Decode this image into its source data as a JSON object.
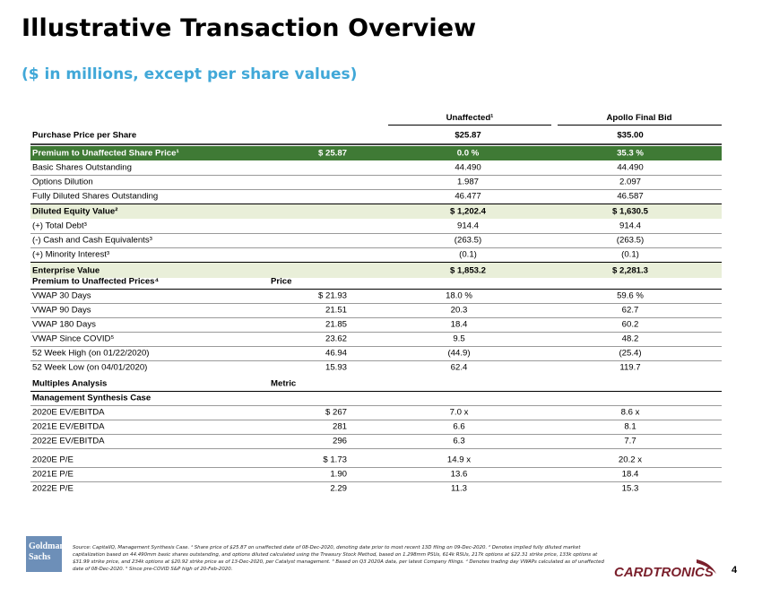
{
  "header": {
    "title": "Illustrative Transaction Overview",
    "subtitle": "($ in millions, except per share values)"
  },
  "table": {
    "col_unaffected": "Unaffected¹",
    "col_apollo": "Apollo Final Bid",
    "purchase_price": {
      "label": "Purchase Price per Share",
      "unaffected": "$25.87",
      "apollo": "$35.00"
    },
    "premium": {
      "label": "Premium to Unaffected Share Price¹",
      "price": "$ 25.87",
      "unaffected": "0.0 %",
      "apollo": "35.3 %"
    },
    "basic_shares": {
      "label": "Basic Shares Outstanding",
      "unaffected": "44.490",
      "apollo": "44.490"
    },
    "options_dilution": {
      "label": "Options Dilution",
      "unaffected": "1.987",
      "apollo": "2.097"
    },
    "fully_diluted": {
      "label": "Fully Diluted Shares Outstanding",
      "unaffected": "46.477",
      "apollo": "46.587"
    },
    "diluted_equity": {
      "label": "Diluted Equity Value²",
      "unaffected": "$ 1,202.4",
      "apollo": "$ 1,630.5"
    },
    "total_debt": {
      "label": "(+) Total Debt³",
      "unaffected": "914.4",
      "apollo": "914.4"
    },
    "cash": {
      "label": "(-) Cash and Cash Equivalents³",
      "unaffected": "(263.5)",
      "apollo": "(263.5)"
    },
    "minority": {
      "label": "(+) Minority Interest³",
      "unaffected": "(0.1)",
      "apollo": "(0.1)"
    },
    "enterprise": {
      "label": "Enterprise Value",
      "unaffected": "$ 1,853.2",
      "apollo": "$ 2,281.3"
    }
  },
  "premiums": {
    "heading": "Premium to Unaffected Prices⁴",
    "price_heading": "Price",
    "rows": [
      {
        "label": "VWAP 30 Days",
        "price": "$ 21.93",
        "unaffected": "18.0 %",
        "apollo": "59.6 %"
      },
      {
        "label": "VWAP 90 Days",
        "price": "21.51",
        "unaffected": "20.3",
        "apollo": "62.7"
      },
      {
        "label": "VWAP 180 Days",
        "price": "21.85",
        "unaffected": "18.4",
        "apollo": "60.2"
      },
      {
        "label": "VWAP Since COVID⁵",
        "price": "23.62",
        "unaffected": "9.5",
        "apollo": "48.2"
      },
      {
        "label": "52 Week High (on 01/22/2020)",
        "price": "46.94",
        "unaffected": "(44.9)",
        "apollo": "(25.4)"
      },
      {
        "label": "52 Week Low (on 04/01/2020)",
        "price": "15.93",
        "unaffected": "62.4",
        "apollo": "119.7"
      }
    ]
  },
  "multiples": {
    "heading": "Multiples Analysis",
    "metric_heading": "Metric",
    "case_heading": "Management Synthesis Case",
    "ebitda": [
      {
        "label": "2020E EV/EBITDA",
        "metric": "$ 267",
        "unaffected": "7.0 x",
        "apollo": "8.6 x"
      },
      {
        "label": "2021E EV/EBITDA",
        "metric": "281",
        "unaffected": "6.6",
        "apollo": "8.1"
      },
      {
        "label": "2022E EV/EBITDA",
        "metric": "296",
        "unaffected": "6.3",
        "apollo": "7.7"
      }
    ],
    "pe": [
      {
        "label": "2020E P/E",
        "metric": "$ 1.73",
        "unaffected": "14.9 x",
        "apollo": "20.2 x"
      },
      {
        "label": "2021E P/E",
        "metric": "1.90",
        "unaffected": "13.6",
        "apollo": "18.4"
      },
      {
        "label": "2022E P/E",
        "metric": "2.29",
        "unaffected": "11.3",
        "apollo": "15.3"
      }
    ]
  },
  "footer": {
    "logo_text": "Goldman Sachs",
    "source": "Source: CapitalIQ, Management Synthesis Case. ¹ Share price of $25.87 on unaffected date of 08-Dec-2020, denoting date prior to most recent 13D filing on 09-Dec-2020. ² Denotes implied fully diluted market capitalization based on 44.490mm basic shares outstanding, and options diluted calculated using the Treasury Stock Method, based on 1.298mm PSUs, 614k RSUs, 217k options at $22.31 strike price, 133k options at $31.99 strike price, and 234k options at $20.92 strike price as of 13-Dec-2020, per Catalyst management. ³ Based on Q3 2020A data, per latest Company filings. ⁴ Denotes trading day VWAPs calculated as of unaffected date of 08-Dec-2020. ⁵ Since pre-COVID S&P high of 20-Feb-2020.",
    "brand": "CARDTRONICS",
    "page_number": "4",
    "brand_color": "#7a1f2b",
    "accent": "#41a8d8",
    "green": "#3f7a35"
  }
}
